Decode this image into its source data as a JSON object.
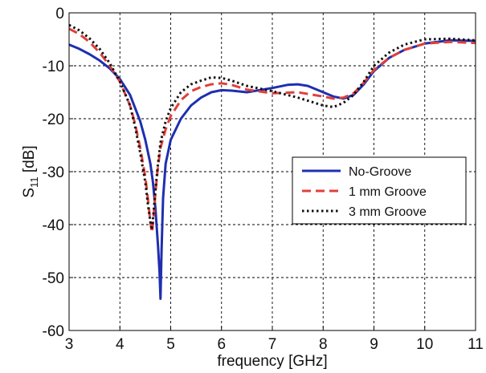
{
  "chart_data": {
    "type": "line",
    "xlabel": "frequency [GHz]",
    "ylabel_main": "S",
    "ylabel_sub": "11",
    "ylabel_unit": " [dB]",
    "xlim": [
      3,
      11
    ],
    "ylim": [
      -60,
      0
    ],
    "xticks": [
      3,
      4,
      5,
      6,
      7,
      8,
      9,
      10,
      11
    ],
    "yticks": [
      0,
      -10,
      -20,
      -30,
      -40,
      -50,
      -60
    ],
    "grid": true,
    "grid_style": "dashed",
    "legend_position": "center-right",
    "series": [
      {
        "name": "No-Groove",
        "color": "#1f2fb0",
        "dash": "solid",
        "x": [
          3.0,
          3.2,
          3.4,
          3.6,
          3.8,
          4.0,
          4.2,
          4.4,
          4.5,
          4.6,
          4.65,
          4.7,
          4.75,
          4.78,
          4.8,
          4.82,
          4.85,
          4.9,
          5.0,
          5.2,
          5.4,
          5.6,
          5.8,
          6.0,
          6.2,
          6.5,
          7.0,
          7.3,
          7.5,
          7.7,
          8.0,
          8.2,
          8.4,
          8.6,
          8.8,
          9.0,
          9.3,
          9.6,
          10.0,
          10.5,
          11.0
        ],
        "y": [
          -6.0,
          -6.8,
          -7.8,
          -9.0,
          -10.5,
          -12.5,
          -15.5,
          -20.5,
          -24.0,
          -28.5,
          -32.0,
          -37.0,
          -44.0,
          -49.0,
          -54.0,
          -45.0,
          -35.0,
          -28.5,
          -24.0,
          -20.0,
          -17.5,
          -16.0,
          -15.0,
          -14.6,
          -14.7,
          -15.0,
          -14.2,
          -13.6,
          -13.5,
          -13.8,
          -15.0,
          -15.8,
          -16.2,
          -15.5,
          -13.5,
          -11.0,
          -8.5,
          -7.0,
          -5.8,
          -5.2,
          -5.3
        ]
      },
      {
        "name": "1 mm Groove",
        "color": "#e0403a",
        "dash": "dashed",
        "x": [
          3.0,
          3.2,
          3.4,
          3.6,
          3.8,
          4.0,
          4.2,
          4.3,
          4.4,
          4.5,
          4.55,
          4.6,
          4.63,
          4.66,
          4.7,
          4.75,
          4.8,
          4.9,
          5.0,
          5.2,
          5.4,
          5.6,
          5.8,
          6.0,
          6.2,
          6.5,
          7.0,
          7.5,
          8.0,
          8.2,
          8.4,
          8.6,
          8.8,
          9.0,
          9.3,
          9.6,
          10.0,
          10.5,
          11.0
        ],
        "y": [
          -3.0,
          -4.0,
          -5.5,
          -7.5,
          -10.0,
          -13.0,
          -17.5,
          -21.0,
          -25.5,
          -31.0,
          -35.0,
          -39.5,
          -41.5,
          -39.0,
          -34.0,
          -29.0,
          -25.5,
          -22.0,
          -19.5,
          -16.5,
          -14.8,
          -14.0,
          -13.5,
          -13.3,
          -13.6,
          -14.5,
          -15.2,
          -15.0,
          -15.8,
          -16.2,
          -16.0,
          -15.2,
          -13.2,
          -10.8,
          -8.5,
          -7.0,
          -5.8,
          -5.5,
          -5.7
        ]
      },
      {
        "name": "3 mm Groove",
        "color": "#111111",
        "dash": "dotted",
        "x": [
          3.0,
          3.2,
          3.4,
          3.6,
          3.8,
          4.0,
          4.2,
          4.3,
          4.4,
          4.5,
          4.55,
          4.6,
          4.63,
          4.66,
          4.7,
          4.75,
          4.8,
          4.9,
          5.0,
          5.2,
          5.4,
          5.6,
          5.8,
          6.0,
          6.2,
          6.5,
          7.0,
          7.5,
          8.0,
          8.2,
          8.4,
          8.6,
          8.8,
          9.0,
          9.3,
          9.6,
          10.0,
          10.5,
          11.0
        ],
        "y": [
          -2.3,
          -3.3,
          -4.8,
          -6.8,
          -9.5,
          -13.0,
          -17.5,
          -21.5,
          -26.5,
          -32.0,
          -36.0,
          -39.5,
          -41.0,
          -38.0,
          -33.5,
          -28.5,
          -24.5,
          -20.5,
          -18.0,
          -15.0,
          -13.5,
          -12.8,
          -12.2,
          -12.3,
          -12.8,
          -13.8,
          -14.8,
          -16.0,
          -17.5,
          -17.8,
          -17.0,
          -15.5,
          -13.0,
          -10.0,
          -7.5,
          -6.0,
          -5.0,
          -4.9,
          -5.2
        ]
      }
    ]
  }
}
